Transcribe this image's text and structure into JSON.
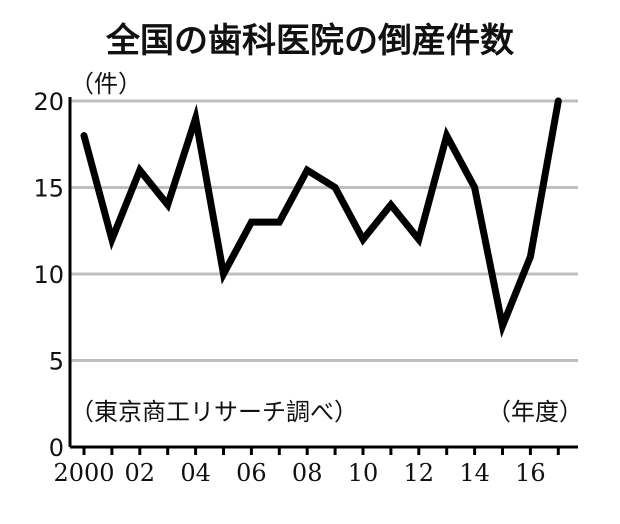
{
  "chart_data": {
    "type": "line",
    "title": "全国の歯科医院の倒産件数",
    "ylabel": "（件）",
    "xlabel": "（年度）",
    "source": "（東京商工リサーチ調べ）",
    "x": [
      2000,
      2001,
      2002,
      2003,
      2004,
      2005,
      2006,
      2007,
      2008,
      2009,
      2010,
      2011,
      2012,
      2013,
      2014,
      2015,
      2016,
      2017
    ],
    "values": [
      18,
      12,
      16,
      14,
      19,
      10,
      13,
      13,
      16,
      15,
      12,
      14,
      12,
      18,
      15,
      7,
      11,
      20
    ],
    "ylim": [
      0,
      20
    ],
    "yticks": [
      0,
      5,
      10,
      15,
      20
    ],
    "xticks": [
      {
        "x": 2000,
        "label": "2000"
      },
      {
        "x": 2002,
        "label": "02"
      },
      {
        "x": 2004,
        "label": "04"
      },
      {
        "x": 2006,
        "label": "06"
      },
      {
        "x": 2008,
        "label": "08"
      },
      {
        "x": 2010,
        "label": "10"
      },
      {
        "x": 2012,
        "label": "12"
      },
      {
        "x": 2014,
        "label": "14"
      },
      {
        "x": 2016,
        "label": "16"
      }
    ],
    "grid": true,
    "colors": {
      "line": "#000000",
      "grid": "#bfbfbf",
      "axis": "#000000"
    }
  }
}
